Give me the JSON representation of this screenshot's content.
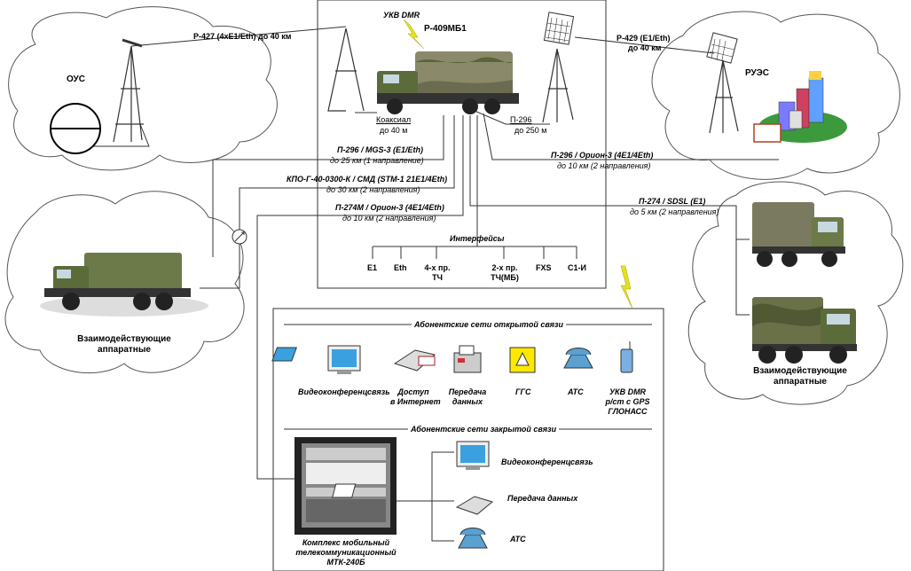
{
  "title": "Р-409МБ1",
  "ukv_top": "УКВ DMR",
  "ous_label": "ОУС",
  "rues_label": "РУЭС",
  "left_group_label": [
    "Взаимодействующие",
    "аппаратные"
  ],
  "right_group_label": [
    "Взаимодействующие",
    "аппаратные"
  ],
  "links": {
    "r427": "Р-427 (4xЕ1/Eth) до 40 км",
    "r429_l1": "Р-429 (Е1/Eth)",
    "r429_l2": "до 40 км",
    "coax_l1": "Коаксиал",
    "coax_l2": "до 40 м",
    "p296short_l1": "П-296",
    "p296short_l2": "до 250 м",
    "p296mgs_l1": "П-296 / MGS-3 (Е1/Eth)",
    "p296mgs_l2": "до 25 км (1 направление)",
    "kpo_l1": "КПО-Г-40-0300-К / СМД (STM-1 21E1/4Eth)",
    "kpo_l2": "до 30 км (2 направления)",
    "p274m_l1": "П-274М / Орион-3 (4Е1/4Eth)",
    "p274m_l2": "до 10 км (2 направления)",
    "p296orion_l1": "П-296 / Орион-3 (4Е1/4Eth)",
    "p296orion_l2": "до 10 км (2 направления)",
    "p274sdsl_l1": "П-274 / SDSL (Е1)",
    "p274sdsl_l2": "до 5 км (2 направления)"
  },
  "interfaces": {
    "title": "Интерфейсы",
    "items": [
      {
        "l1": "E1",
        "l2": ""
      },
      {
        "l1": "Eth",
        "l2": ""
      },
      {
        "l1": "4-х пр.",
        "l2": "ТЧ"
      },
      {
        "l1": "2-х пр.",
        "l2": "ТЧ(МБ)"
      },
      {
        "l1": "FXS",
        "l2": ""
      },
      {
        "l1": "С1-И",
        "l2": ""
      }
    ]
  },
  "open_nets": {
    "title": "Абонентские сети открытой связи",
    "items": [
      {
        "icon": "monitor-icon",
        "l1": "Видеоконференцсвязь",
        "l2": "",
        "l3": ""
      },
      {
        "icon": "laptop-mail-icon",
        "l1": "Доступ",
        "l2": "в Интернет",
        "l3": ""
      },
      {
        "icon": "fax-icon",
        "l1": "Передача",
        "l2": "данных",
        "l3": ""
      },
      {
        "icon": "loudspeaker-icon",
        "l1": "ГГС",
        "l2": "",
        "l3": ""
      },
      {
        "icon": "phone-icon",
        "l1": "АТС",
        "l2": "",
        "l3": ""
      },
      {
        "icon": "handheld-radio-icon",
        "l1": "УКВ DMR",
        "l2": "р/ст с GPS",
        "l3": "ГЛОНАСС"
      }
    ]
  },
  "closed_nets": {
    "title": "Абонентские сети закрытой связи",
    "items": [
      {
        "icon": "monitor-icon",
        "label": "Видеоконференцсвязь"
      },
      {
        "icon": "laptop-icon",
        "label": "Передача данных"
      },
      {
        "icon": "phone-icon",
        "label": "АТС"
      }
    ],
    "mtk_l1": "Комплекс мобильный",
    "mtk_l2": "телекоммуникационный",
    "mtk_l3": "МТК-240Б"
  },
  "colors": {
    "line": "#3a3a3a",
    "vehicle_green": "#5c6b3a",
    "camo": "#8a8a6a",
    "cloud_stroke": "#555555",
    "lightning": "#e8e020",
    "screen_blue": "#3aa0e0"
  }
}
